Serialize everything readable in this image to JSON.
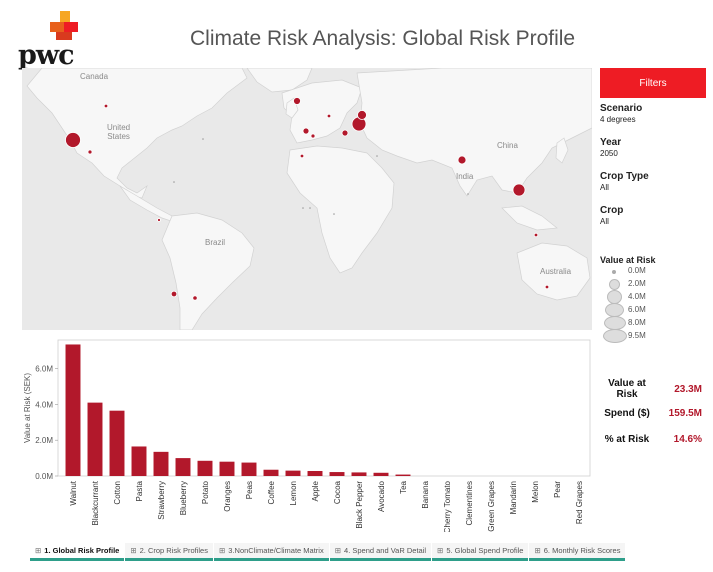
{
  "header": {
    "logo_text": "pwc",
    "title": "Climate Risk Analysis: Global Risk Profile"
  },
  "map": {
    "labels": [
      {
        "id": "canada",
        "text": "Canada"
      },
      {
        "id": "us",
        "text": "United\nStates"
      },
      {
        "id": "china",
        "text": "China"
      },
      {
        "id": "india",
        "text": "India"
      },
      {
        "id": "brazil",
        "text": "Brazil"
      },
      {
        "id": "australia",
        "text": "Australia"
      }
    ],
    "marker_color": "#b2182b"
  },
  "filters": {
    "title": "Filters",
    "items": [
      {
        "label": "Scenario",
        "value": "4 degrees"
      },
      {
        "label": "Year",
        "value": "2050"
      },
      {
        "label": "Crop Type",
        "value": "All"
      },
      {
        "label": "Crop",
        "value": "All"
      }
    ]
  },
  "legend": {
    "title": "Value at Risk",
    "items": [
      "0.0M",
      "2.0M",
      "4.0M",
      "6.0M",
      "8.0M",
      "9.5M"
    ]
  },
  "summary": [
    {
      "label": "Value at Risk",
      "value": "23.3M"
    },
    {
      "label": "Spend ($)",
      "value": "159.5M"
    },
    {
      "label": "% at Risk",
      "value": "14.6%"
    }
  ],
  "chart_data": {
    "type": "bar",
    "ylabel": "Value at Risk (SEK)",
    "ylim": [
      0,
      7.6
    ],
    "yticks": [
      "0.0M",
      "2.0M",
      "4.0M",
      "6.0M"
    ],
    "ytick_values": [
      0,
      2,
      4,
      6
    ],
    "categories": [
      "Walnut",
      "Blackcurrant",
      "Cotton",
      "Pasta",
      "Strawberry",
      "Blueberry",
      "Potato",
      "Oranges",
      "Peas",
      "Coffee",
      "Lemon",
      "Apple",
      "Cocoa",
      "Black Pepper",
      "Avocado",
      "Tea",
      "Banana",
      "Cherry Tomato",
      "Clementines",
      "Green Grapes",
      "Mandarin",
      "Melon",
      "Pear",
      "Red Grapes"
    ],
    "values": [
      7.35,
      4.1,
      3.65,
      1.65,
      1.35,
      1.0,
      0.85,
      0.8,
      0.75,
      0.35,
      0.3,
      0.28,
      0.22,
      0.2,
      0.18,
      0.08,
      0,
      0,
      0,
      0,
      0,
      0,
      0,
      0
    ],
    "bar_color": "#b2182b"
  },
  "tabs": [
    {
      "label": "1. Global Risk Profile",
      "active": true
    },
    {
      "label": "2. Crop Risk Profiles",
      "active": false
    },
    {
      "label": "3.NonClimate/Climate Matrix",
      "active": false
    },
    {
      "label": "4. Spend and VaR Detail",
      "active": false
    },
    {
      "label": "5. Global Spend Profile",
      "active": false
    },
    {
      "label": "6. Monthly Risk Scores",
      "active": false
    }
  ]
}
